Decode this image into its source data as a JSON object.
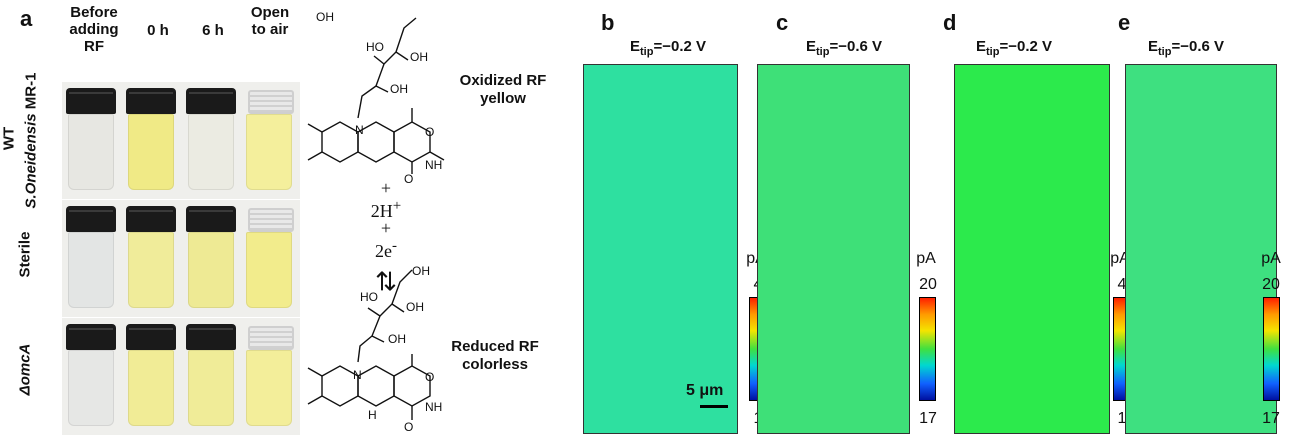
{
  "panel_a": {
    "letter": "a",
    "columns": [
      {
        "line1": "Before",
        "line2": "adding RF"
      },
      {
        "line1": "0 h",
        "line2": ""
      },
      {
        "line1": "6 h",
        "line2": ""
      },
      {
        "line1": "Open",
        "line2": "to air"
      }
    ],
    "rows": [
      {
        "label_wt": "WT",
        "label_species": "S.Oneidensis",
        "label_strain": " MR-1"
      },
      {
        "label": "Sterile"
      },
      {
        "label": "ΔomcA"
      }
    ],
    "vial_colors": {
      "clear": "#e6e6e0",
      "pale_yellow": "#f2f0a8",
      "yellow": "#eee878",
      "near_clear": "#ecece4"
    }
  },
  "chemistry": {
    "oxidized_line1": "Oxidized RF",
    "oxidized_line2": "yellow",
    "plus1": "+",
    "protons": "2H",
    "protons_sup": "+",
    "plus2": "+",
    "electrons": "2e",
    "electrons_sup": "-",
    "arrows": "⇄",
    "reduced_line1": "Reduced RF",
    "reduced_line2": "colorless",
    "atom_N": "N",
    "atom_O": "O",
    "atom_NH": "NH",
    "atom_OH": "OH",
    "atom_HO": "HO",
    "atom_H": "H"
  },
  "maps": [
    {
      "letter": "b",
      "etip_prefix": "E",
      "etip_sub": "tip",
      "etip_value": "=−0.2  V",
      "unit": "pA",
      "max": "4",
      "min": "1",
      "fill": "#2ee0a0"
    },
    {
      "letter": "c",
      "etip_prefix": "E",
      "etip_sub": "tip",
      "etip_value": "=−0.6  V",
      "unit": "pA",
      "max": "20",
      "min": "17",
      "fill": "#3ee078"
    },
    {
      "letter": "d",
      "etip_prefix": "E",
      "etip_sub": "tip",
      "etip_value": "=−0.2  V",
      "unit": "pA",
      "max": "4",
      "min": "1",
      "fill": "#2cea4c"
    },
    {
      "letter": "e",
      "etip_prefix": "E",
      "etip_sub": "tip",
      "etip_value": "=−0.6  V",
      "unit": "pA",
      "max": "20",
      "min": "17",
      "fill": "#3ee080"
    }
  ],
  "scale_bar": "5 μm"
}
